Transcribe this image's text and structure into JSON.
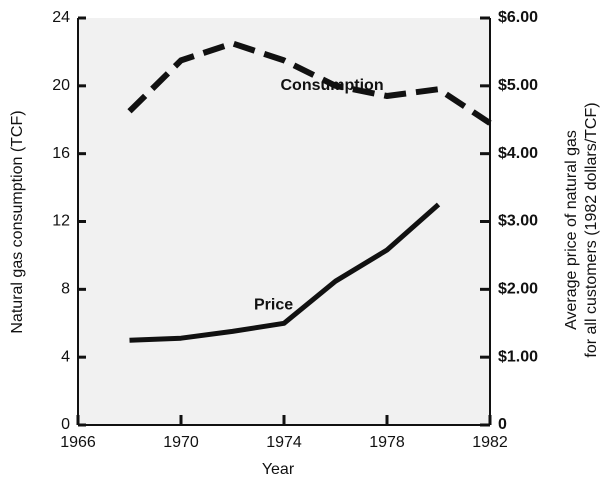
{
  "chart_data": {
    "type": "line",
    "x_label": "Year",
    "y_label": "Natural gas consumption (TCF)",
    "y2_label": [
      "Average price of natural gas",
      "for all customers (1982 dollars/TCF)"
    ],
    "x": [
      1968,
      1970,
      1972,
      1974,
      1976,
      1978,
      1980,
      1982
    ],
    "xlim": [
      1966,
      1982
    ],
    "xticks": [
      1966,
      1970,
      1974,
      1978,
      1982
    ],
    "ylim": [
      0,
      24
    ],
    "yticks": [
      0,
      4,
      8,
      12,
      16,
      20,
      24
    ],
    "y2lim": [
      0,
      6
    ],
    "y2ticks": [
      0,
      {
        "value": 1,
        "label": "$1.00"
      },
      {
        "value": 2,
        "label": "$2.00"
      },
      {
        "value": 3,
        "label": "$3.00"
      },
      {
        "value": 4,
        "label": "$4.00"
      },
      {
        "value": 5,
        "label": "$5.00"
      },
      {
        "value": 6,
        "label": "$6.00"
      }
    ],
    "series": [
      {
        "name": "Consumption",
        "color": "#111111",
        "dashed": true,
        "values": [
          18.5,
          21.5,
          22.5,
          21.5,
          20,
          19.4,
          19.8,
          17.8
        ]
      },
      {
        "name": "Price",
        "color": "#111111",
        "dashed": false,
        "axis": "y2",
        "values": [
          1.25,
          1.28,
          1.38,
          1.5,
          2.12,
          2.58,
          3.25,
          null
        ]
      }
    ]
  }
}
